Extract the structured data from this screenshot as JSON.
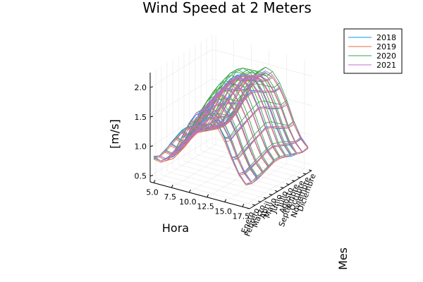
{
  "chart_data": {
    "type": "line",
    "title": "Wind Speed at 2 Meters",
    "xlabel": "Hora",
    "ylabel": "Mes",
    "zlabel": "[m/s]",
    "x_ticks": [
      "5.0",
      "7.5",
      "10.0",
      "12.5",
      "15.0",
      "17.5"
    ],
    "x_tick_values": [
      5.0,
      7.5,
      10.0,
      12.5,
      15.0,
      17.5
    ],
    "xlim": [
      4.5,
      18.5
    ],
    "y_categories": [
      "Enero",
      "Febrero",
      "Marzo",
      "Abril",
      "Mayo",
      "Junio",
      "Julio",
      "Agosto",
      "Septiembre",
      "Octubre",
      "Noviembre",
      "Diciembre"
    ],
    "z_ticks": [
      "0.5",
      "1.0",
      "1.5",
      "2.0"
    ],
    "z_tick_values": [
      0.5,
      1.0,
      1.5,
      2.0
    ],
    "zlim": [
      0.4,
      2.25
    ],
    "hours": [
      5,
      6,
      7,
      8,
      9,
      10,
      11,
      12,
      13,
      14,
      15,
      16,
      17,
      18
    ],
    "grid": true,
    "legend_position": "top-right",
    "series": [
      {
        "name": "2018",
        "color": "#009af9",
        "surface": [
          [
            0.85,
            0.8,
            0.9,
            1.05,
            1.3,
            1.55,
            1.75,
            1.85,
            1.8,
            1.7,
            1.5,
            1.2,
            0.95,
            0.8
          ],
          [
            0.8,
            0.78,
            0.85,
            1.0,
            1.25,
            1.5,
            1.7,
            1.8,
            1.75,
            1.6,
            1.4,
            1.1,
            0.9,
            0.75
          ],
          [
            0.82,
            0.8,
            0.9,
            1.1,
            1.35,
            1.6,
            1.8,
            1.9,
            1.85,
            1.7,
            1.45,
            1.15,
            0.92,
            0.78
          ],
          [
            0.9,
            0.85,
            0.95,
            1.15,
            1.4,
            1.65,
            1.85,
            1.95,
            1.9,
            1.75,
            1.5,
            1.2,
            0.95,
            0.8
          ],
          [
            0.95,
            0.9,
            1.0,
            1.2,
            1.45,
            1.7,
            1.9,
            2.0,
            1.95,
            1.8,
            1.55,
            1.25,
            1.0,
            0.85
          ],
          [
            1.0,
            0.95,
            1.05,
            1.25,
            1.5,
            1.75,
            1.95,
            2.05,
            2.0,
            1.85,
            1.6,
            1.3,
            1.05,
            0.9
          ],
          [
            1.0,
            0.95,
            1.05,
            1.25,
            1.5,
            1.8,
            2.0,
            2.1,
            2.05,
            1.9,
            1.65,
            1.35,
            1.05,
            0.9
          ],
          [
            0.95,
            0.9,
            1.0,
            1.2,
            1.45,
            1.75,
            1.95,
            2.05,
            2.0,
            1.85,
            1.6,
            1.3,
            1.0,
            0.85
          ],
          [
            0.9,
            0.85,
            0.95,
            1.15,
            1.4,
            1.65,
            1.85,
            1.95,
            1.9,
            1.75,
            1.5,
            1.2,
            0.95,
            0.8
          ],
          [
            0.85,
            0.8,
            0.9,
            1.1,
            1.35,
            1.6,
            1.8,
            1.9,
            1.85,
            1.7,
            1.45,
            1.15,
            0.9,
            0.78
          ],
          [
            0.8,
            0.78,
            0.85,
            1.05,
            1.3,
            1.55,
            1.75,
            1.85,
            1.8,
            1.65,
            1.4,
            1.1,
            0.88,
            0.75
          ],
          [
            0.82,
            0.8,
            0.88,
            1.05,
            1.3,
            1.55,
            1.75,
            1.85,
            1.8,
            1.65,
            1.4,
            1.1,
            0.9,
            0.76
          ]
        ]
      },
      {
        "name": "2019",
        "color": "#e26f46",
        "surface": [
          [
            0.8,
            0.78,
            0.85,
            1.0,
            1.25,
            1.5,
            1.7,
            1.78,
            1.75,
            1.62,
            1.42,
            1.15,
            0.92,
            0.78
          ],
          [
            0.78,
            0.75,
            0.82,
            0.98,
            1.22,
            1.48,
            1.68,
            1.76,
            1.72,
            1.58,
            1.38,
            1.1,
            0.88,
            0.75
          ],
          [
            0.8,
            0.78,
            0.86,
            1.04,
            1.3,
            1.56,
            1.76,
            1.86,
            1.82,
            1.66,
            1.44,
            1.14,
            0.9,
            0.76
          ],
          [
            0.85,
            0.82,
            0.9,
            1.1,
            1.36,
            1.62,
            1.82,
            1.92,
            1.88,
            1.72,
            1.48,
            1.18,
            0.94,
            0.8
          ],
          [
            0.9,
            0.86,
            0.96,
            1.16,
            1.42,
            1.68,
            1.88,
            1.98,
            1.94,
            1.78,
            1.54,
            1.24,
            0.98,
            0.84
          ],
          [
            0.95,
            0.9,
            1.0,
            1.2,
            1.46,
            1.72,
            1.92,
            2.02,
            1.98,
            1.82,
            1.58,
            1.28,
            1.02,
            0.88
          ],
          [
            0.96,
            0.92,
            1.02,
            1.22,
            1.48,
            1.76,
            1.96,
            2.06,
            2.02,
            1.86,
            1.62,
            1.32,
            1.04,
            0.88
          ],
          [
            0.92,
            0.88,
            0.98,
            1.18,
            1.44,
            1.72,
            1.92,
            2.02,
            1.98,
            1.82,
            1.58,
            1.28,
            1.0,
            0.85
          ],
          [
            0.88,
            0.84,
            0.94,
            1.14,
            1.4,
            1.66,
            1.86,
            1.96,
            1.92,
            1.76,
            1.52,
            1.22,
            0.96,
            0.82
          ],
          [
            0.84,
            0.8,
            0.9,
            1.08,
            1.34,
            1.6,
            1.8,
            1.9,
            1.86,
            1.7,
            1.46,
            1.16,
            0.92,
            0.78
          ],
          [
            0.8,
            0.76,
            0.84,
            1.02,
            1.28,
            1.54,
            1.74,
            1.84,
            1.8,
            1.64,
            1.4,
            1.1,
            0.88,
            0.75
          ],
          [
            0.8,
            0.78,
            0.86,
            1.04,
            1.28,
            1.54,
            1.74,
            1.84,
            1.8,
            1.64,
            1.4,
            1.1,
            0.88,
            0.76
          ]
        ]
      },
      {
        "name": "2020",
        "color": "#3da44d",
        "surface": [
          [
            0.82,
            0.8,
            0.88,
            1.04,
            1.3,
            1.56,
            1.78,
            1.88,
            1.84,
            1.7,
            1.48,
            1.18,
            0.94,
            0.8
          ],
          [
            0.8,
            0.78,
            0.86,
            1.02,
            1.28,
            1.54,
            1.76,
            1.86,
            1.82,
            1.68,
            1.46,
            1.16,
            0.92,
            0.78
          ],
          [
            0.84,
            0.82,
            0.92,
            1.12,
            1.38,
            1.66,
            1.88,
            1.98,
            1.94,
            1.78,
            1.54,
            1.22,
            0.96,
            0.82
          ],
          [
            0.88,
            0.86,
            0.96,
            1.18,
            1.46,
            1.74,
            1.96,
            2.06,
            2.02,
            1.86,
            1.6,
            1.28,
            1.0,
            0.84
          ],
          [
            0.94,
            0.9,
            1.02,
            1.24,
            1.52,
            1.8,
            2.02,
            2.12,
            2.08,
            1.92,
            1.66,
            1.34,
            1.04,
            0.88
          ],
          [
            0.98,
            0.94,
            1.06,
            1.28,
            1.56,
            1.84,
            2.06,
            2.16,
            2.12,
            1.96,
            1.7,
            1.38,
            1.08,
            0.92
          ],
          [
            1.0,
            0.96,
            1.08,
            1.3,
            1.58,
            1.88,
            2.1,
            2.2,
            2.16,
            2.0,
            1.74,
            1.42,
            1.1,
            0.92
          ],
          [
            0.96,
            0.92,
            1.04,
            1.26,
            1.54,
            1.84,
            2.06,
            2.16,
            2.12,
            1.96,
            1.7,
            1.38,
            1.06,
            0.88
          ],
          [
            0.92,
            0.88,
            0.98,
            1.2,
            1.48,
            1.76,
            1.98,
            2.08,
            2.04,
            1.88,
            1.62,
            1.3,
            1.02,
            0.84
          ],
          [
            0.86,
            0.82,
            0.92,
            1.12,
            1.4,
            1.68,
            1.9,
            2.0,
            1.96,
            1.8,
            1.54,
            1.22,
            0.96,
            0.8
          ],
          [
            0.82,
            0.78,
            0.88,
            1.06,
            1.32,
            1.6,
            1.82,
            1.92,
            1.88,
            1.72,
            1.46,
            1.14,
            0.9,
            0.76
          ],
          [
            0.84,
            0.8,
            0.88,
            1.08,
            1.34,
            1.62,
            1.84,
            1.94,
            1.9,
            1.74,
            1.48,
            1.16,
            0.92,
            0.78
          ]
        ]
      },
      {
        "name": "2021",
        "color": "#c271d2",
        "surface": [
          [
            0.84,
            0.8,
            0.88,
            1.06,
            1.32,
            1.58,
            1.78,
            1.86,
            1.82,
            1.68,
            1.46,
            1.18,
            0.94,
            0.8
          ],
          [
            0.8,
            0.78,
            0.86,
            1.04,
            1.3,
            1.56,
            1.76,
            1.84,
            1.8,
            1.66,
            1.44,
            1.14,
            0.92,
            0.78
          ],
          [
            0.82,
            0.8,
            0.9,
            1.1,
            1.36,
            1.62,
            1.82,
            1.92,
            1.88,
            1.72,
            1.48,
            1.18,
            0.94,
            0.8
          ],
          [
            0.88,
            0.84,
            0.94,
            1.14,
            1.4,
            1.66,
            1.86,
            1.96,
            1.92,
            1.76,
            1.52,
            1.22,
            0.96,
            0.82
          ],
          [
            0.92,
            0.88,
            0.98,
            1.18,
            1.44,
            1.7,
            1.9,
            2.0,
            1.96,
            1.8,
            1.56,
            1.26,
            1.0,
            0.86
          ],
          [
            0.96,
            0.92,
            1.02,
            1.22,
            1.48,
            1.74,
            1.94,
            2.04,
            2.0,
            1.84,
            1.6,
            1.3,
            1.04,
            0.9
          ],
          [
            0.98,
            0.94,
            1.04,
            1.24,
            1.5,
            1.78,
            1.98,
            2.08,
            2.04,
            1.88,
            1.64,
            1.34,
            1.06,
            0.9
          ],
          [
            0.94,
            0.9,
            1.0,
            1.2,
            1.46,
            1.74,
            1.94,
            2.04,
            2.0,
            1.84,
            1.6,
            1.3,
            1.02,
            0.86
          ],
          [
            0.9,
            0.86,
            0.96,
            1.16,
            1.42,
            1.68,
            1.88,
            1.98,
            1.94,
            1.78,
            1.54,
            1.24,
            0.98,
            0.82
          ],
          [
            0.86,
            0.82,
            0.92,
            1.1,
            1.36,
            1.62,
            1.82,
            1.92,
            1.88,
            1.72,
            1.48,
            1.18,
            0.94,
            0.8
          ],
          [
            0.82,
            0.78,
            0.86,
            1.04,
            1.3,
            1.56,
            1.76,
            1.86,
            1.82,
            1.66,
            1.42,
            1.12,
            0.9,
            0.76
          ],
          [
            0.84,
            0.8,
            0.88,
            1.06,
            1.32,
            1.58,
            1.78,
            1.88,
            1.84,
            1.68,
            1.44,
            1.14,
            0.92,
            0.78
          ]
        ]
      }
    ]
  }
}
